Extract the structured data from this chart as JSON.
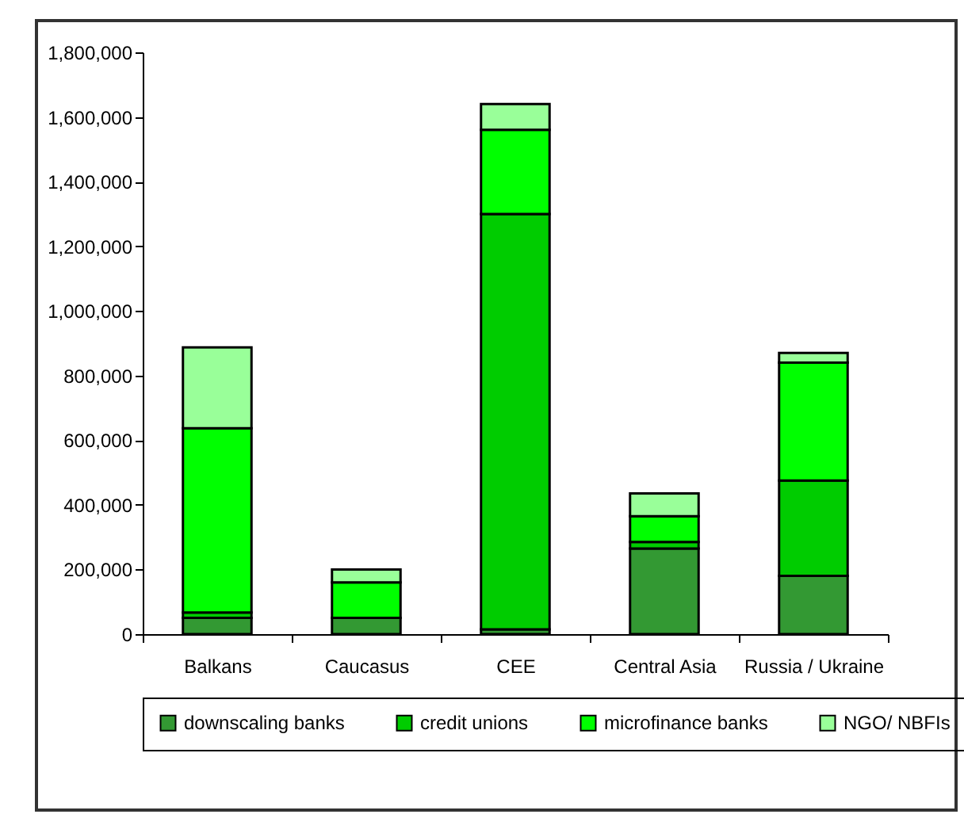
{
  "chart_data": {
    "type": "bar",
    "stacked": true,
    "categories": [
      "Balkans",
      "Caucasus",
      "CEE",
      "Central Asia",
      "Russia / Ukraine"
    ],
    "series": [
      {
        "name": "downscaling banks",
        "color": "#339933",
        "values": [
          50000,
          50000,
          15000,
          265000,
          180000
        ]
      },
      {
        "name": "credit unions",
        "color": "#00cc00",
        "values": [
          17000,
          0,
          1285000,
          20000,
          295000
        ]
      },
      {
        "name": "microfinance banks",
        "color": "#00ff00",
        "values": [
          570000,
          110000,
          260000,
          80000,
          365000
        ]
      },
      {
        "name": "NGO/ NBFIs",
        "color": "#99ff99",
        "values": [
          250000,
          40000,
          80000,
          70000,
          30000
        ]
      }
    ],
    "ylim": [
      0,
      1800000
    ],
    "yticks": [
      0,
      {
        "value": 200000,
        "label": "200,000"
      },
      {
        "value": 400000,
        "label": "400,000"
      },
      {
        "value": 600000,
        "label": "600,000"
      },
      {
        "value": 800000,
        "label": "800,000"
      },
      {
        "value": 1000000,
        "label": "1,000,000"
      },
      {
        "value": 1200000,
        "label": "1,200,000"
      },
      {
        "value": 1400000,
        "label": "1,400,000"
      },
      {
        "value": 1600000,
        "label": "1,600,000"
      },
      {
        "value": 1800000,
        "label": "1,800,000"
      }
    ],
    "grid": false,
    "legend": "bottom"
  }
}
